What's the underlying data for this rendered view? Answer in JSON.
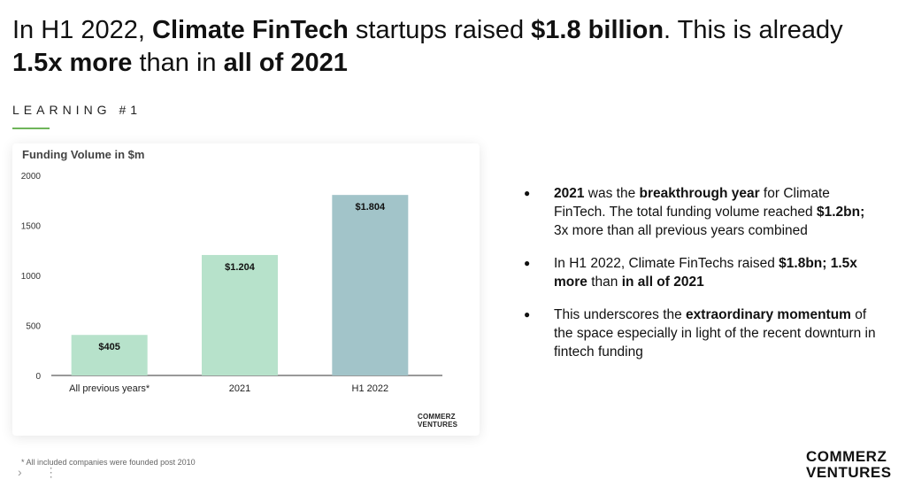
{
  "headline": {
    "p1": "In H1 2022, ",
    "b1": "Climate FinTech",
    "p2": " startups raised ",
    "b2": "$1.8 billion",
    "p3": ". This is already ",
    "b3": "1.5x more",
    "p4": " than in ",
    "b4": "all of 2021"
  },
  "learning_label": "LEARNING #1",
  "chart_title": "Funding Volume in $m",
  "chart_logo": {
    "line1": "COMMERZ",
    "line2": "VENTURES"
  },
  "chart_data": {
    "type": "bar",
    "title": "Funding Volume in $m",
    "xlabel": "",
    "ylabel": "",
    "categories": [
      "All previous years*",
      "2021",
      "H1 2022"
    ],
    "values": [
      405,
      1204,
      1804
    ],
    "data_labels": [
      "$405",
      "$1.204",
      "$1.804"
    ],
    "colors": [
      "#b7e2cb",
      "#b7e2cb",
      "#a2c4c9"
    ],
    "yticks": [
      0,
      500,
      1000,
      1500,
      2000
    ],
    "ylim": [
      0,
      2000
    ],
    "grid": false,
    "legend": "none"
  },
  "footnote": "* All included companies were founded post 2010",
  "bullets": [
    {
      "b1": "2021",
      "t1": " was the ",
      "b2": "breakthrough year",
      "t2": " for Climate FinTech. The total funding volume reached ",
      "b3": "$1.2bn;",
      "t3": " 3x more than all previous years combined"
    },
    {
      "t1": "In H1 2022, Climate FinTechs raised ",
      "b1": "$1.8bn;",
      "t2": " ",
      "b2": "1.5x more",
      "t3": " than ",
      "b3": "in all of 2021"
    },
    {
      "t1": "This underscores the ",
      "b1": "extraordinary momentum",
      "t2": " of the space especially in light of the recent downturn in fintech funding"
    }
  ],
  "brand_logo": {
    "line1": "COMMERZ",
    "line2": "VENTURES"
  },
  "corner_controls": {
    "chevron": "›",
    "dots": "⋮"
  }
}
